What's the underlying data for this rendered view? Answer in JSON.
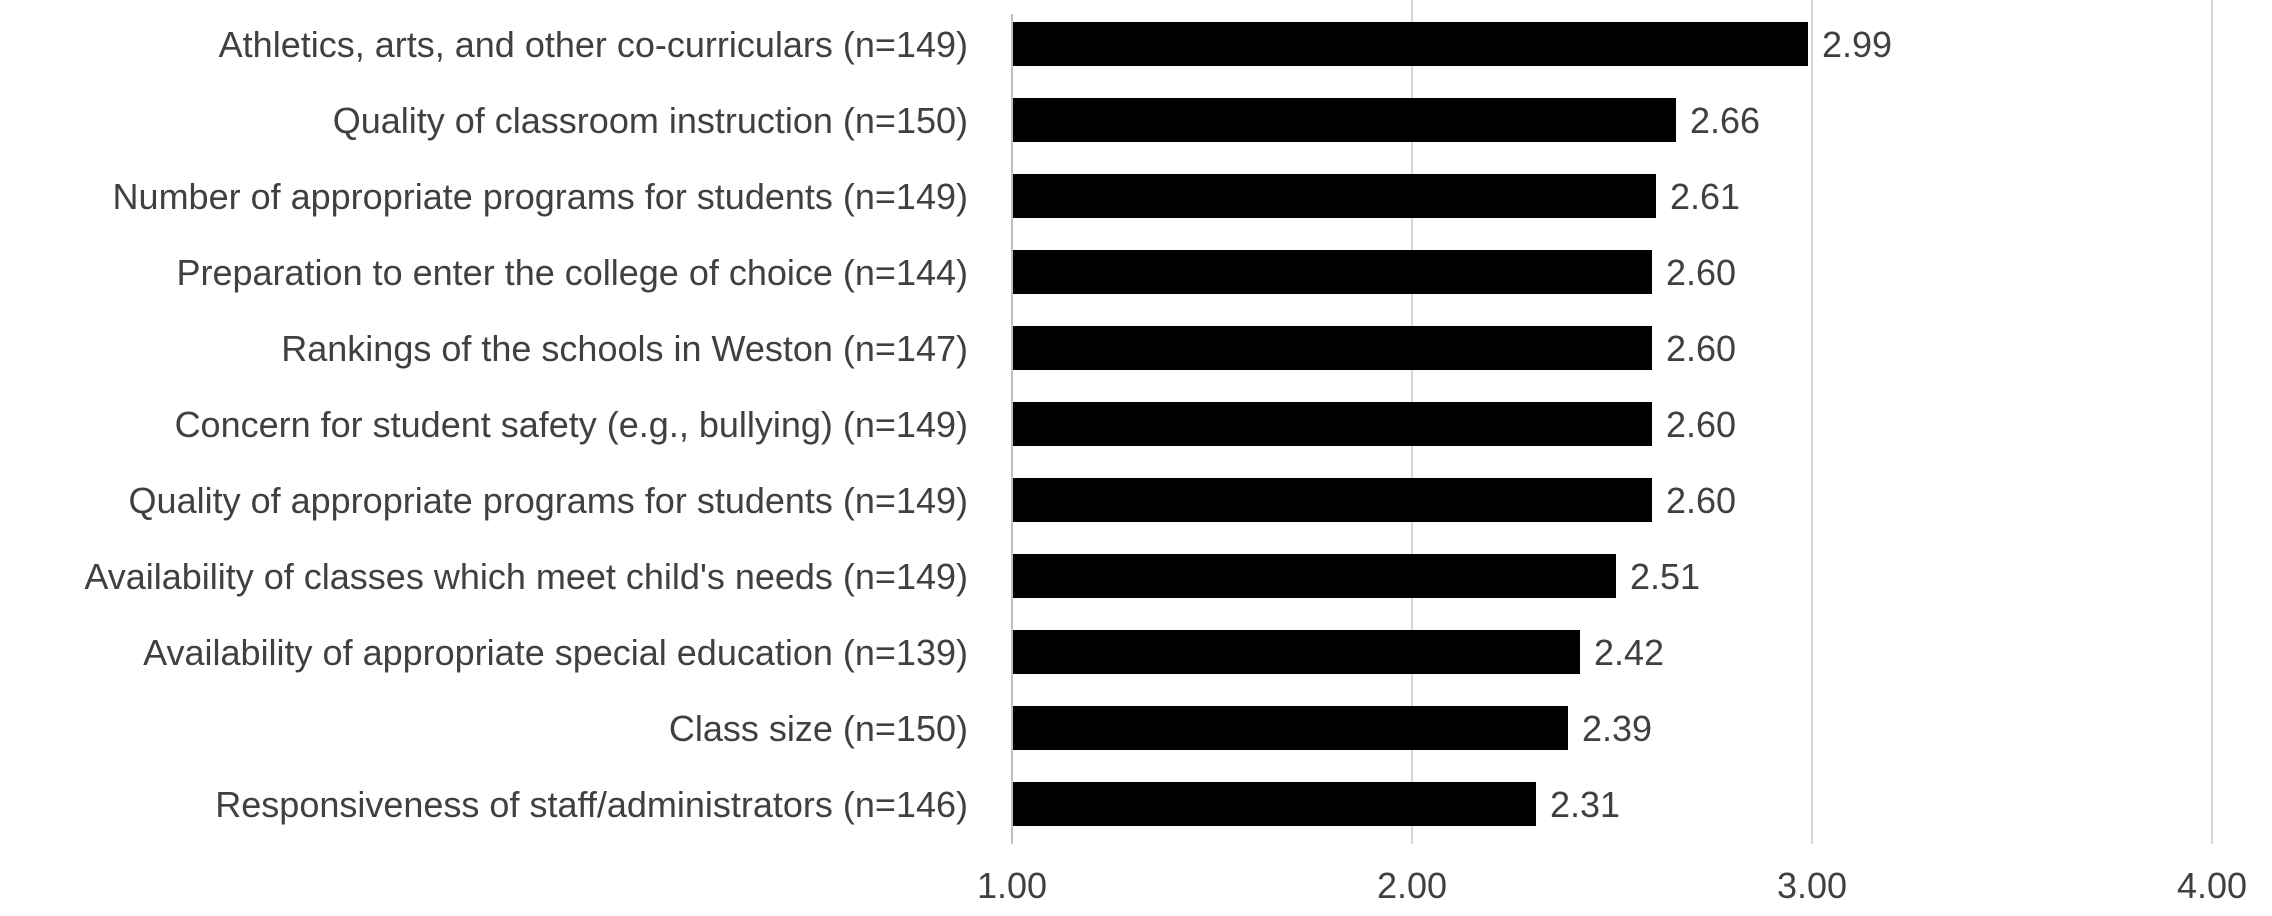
{
  "chart_data": {
    "type": "bar",
    "orientation": "horizontal",
    "categories": [
      "Athletics, arts, and other co-curriculars (n=149)",
      "Quality of classroom instruction (n=150)",
      "Number of appropriate programs for students (n=149)",
      "Preparation to enter the college of choice (n=144)",
      "Rankings of the schools in Weston (n=147)",
      "Concern for student safety (e.g., bullying) (n=149)",
      "Quality of appropriate programs for students (n=149)",
      "Availability of classes which meet child's needs (n=149)",
      "Availability of appropriate special education (n=139)",
      "Class size (n=150)",
      "Responsiveness of staff/administrators (n=146)"
    ],
    "values": [
      2.99,
      2.66,
      2.61,
      2.6,
      2.6,
      2.6,
      2.6,
      2.51,
      2.42,
      2.39,
      2.31
    ],
    "value_labels": [
      "2.99",
      "2.66",
      "2.61",
      "2.60",
      "2.60",
      "2.60",
      "2.60",
      "2.51",
      "2.42",
      "2.39",
      "2.31"
    ],
    "x_ticks": [
      1,
      2,
      3,
      4
    ],
    "x_tick_labels": [
      "1.00",
      "2.00",
      "3.00",
      "4.00"
    ],
    "xlim": [
      1,
      4
    ],
    "grid": true,
    "legend": "none",
    "bar_color": "#000000",
    "title": "",
    "xlabel": "",
    "ylabel": ""
  }
}
